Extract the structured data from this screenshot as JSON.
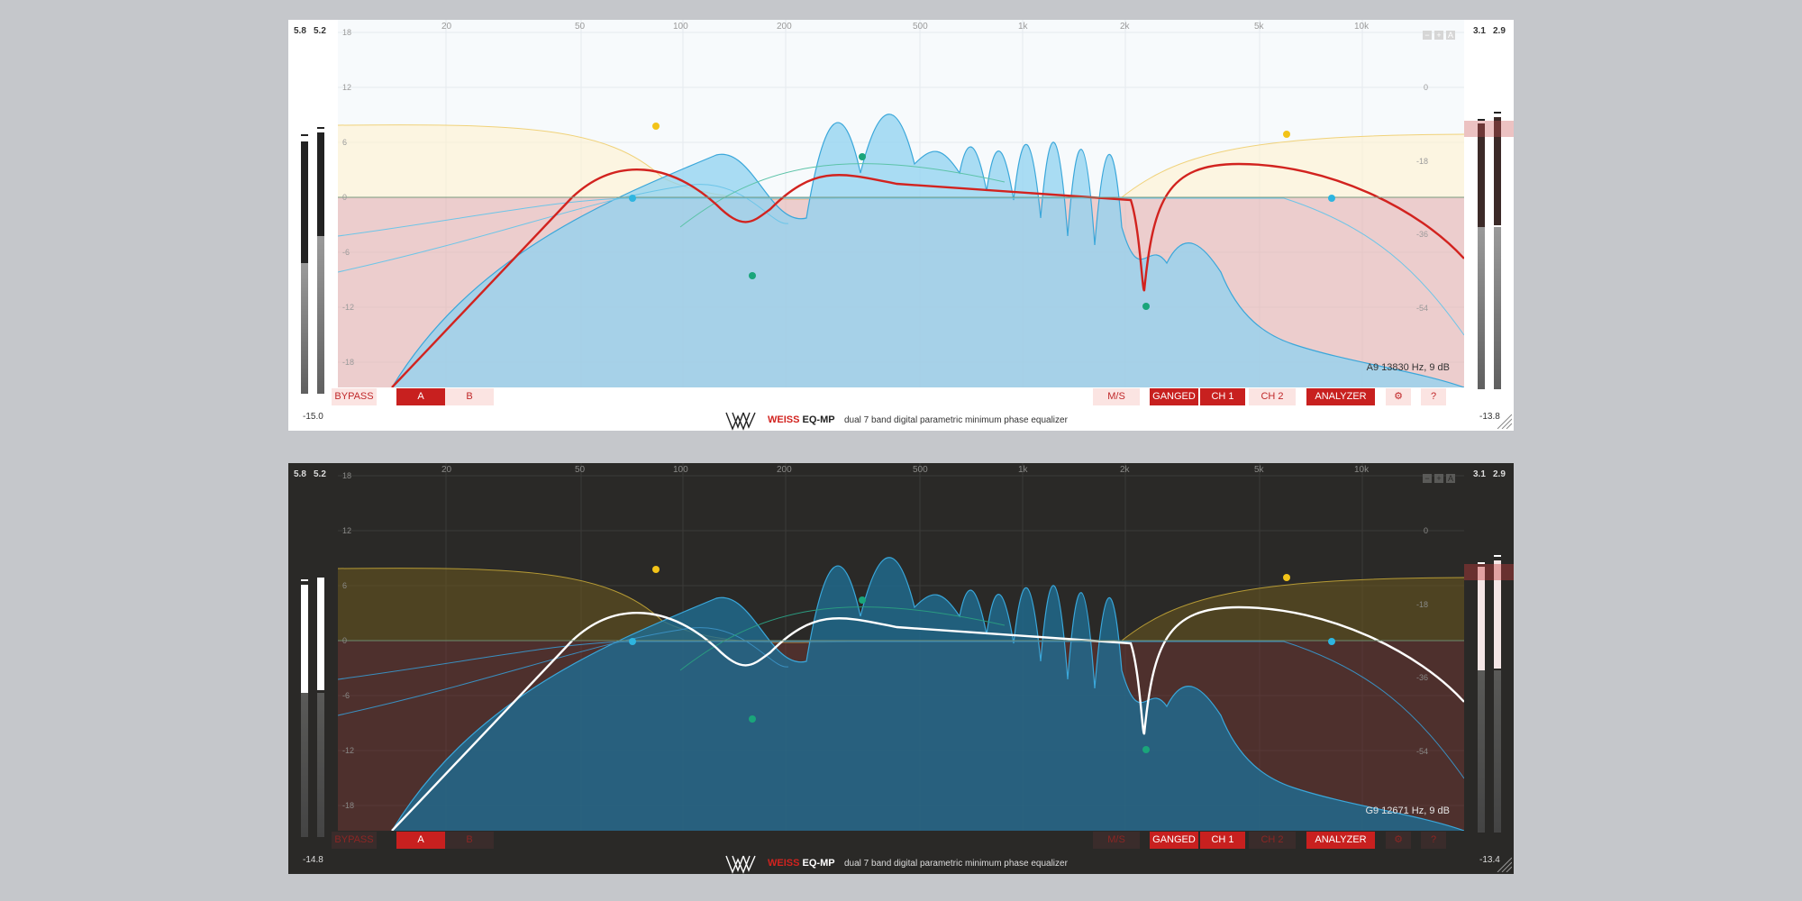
{
  "panels": [
    {
      "theme": "light",
      "meters": {
        "left_peak_1": "5.8",
        "left_peak_2": "5.2",
        "left_bottom": "-15.0",
        "right_peak_1": "3.1",
        "right_peak_2": "2.9",
        "right_bottom": "-13.8"
      },
      "readout": "A9 13830 Hz, 9 dB"
    },
    {
      "theme": "dark",
      "meters": {
        "left_peak_1": "5.8",
        "left_peak_2": "5.2",
        "left_bottom": "-14.8",
        "right_peak_1": "3.1",
        "right_peak_2": "2.9",
        "right_bottom": "-13.4"
      },
      "readout": "G9 12671 Hz, 9 dB"
    }
  ],
  "freq_labels": [
    "20",
    "50",
    "100",
    "200",
    "500",
    "1k",
    "2k",
    "5k",
    "10k"
  ],
  "db_labels": [
    "18",
    "12",
    "6",
    "0",
    "-6",
    "-12",
    "-18"
  ],
  "analyzer_labels": [
    "0",
    "-18",
    "-36",
    "-54"
  ],
  "zoom": {
    "minus": "−",
    "plus": "+",
    "auto": "A"
  },
  "buttons": {
    "bypass": "BYPASS",
    "a": "A",
    "b": "B",
    "ms": "M/S",
    "ganged": "GANGED",
    "ch1": "CH 1",
    "ch2": "CH 2",
    "analyzer": "ANALYZER",
    "settings": "⚙",
    "help": "?"
  },
  "brand": {
    "weiss": "WEISS",
    "product": "EQ-MP",
    "tagline": "dual 7 band digital parametric minimum phase equalizer"
  },
  "colors": {
    "accent_red": "#c8201f",
    "eq_curve_light": "#d2231f",
    "eq_curve_dark": "#ffffff",
    "band_cyan": "#2eb5e0",
    "band_green": "#1aa57a",
    "band_yellow": "#f2c318"
  }
}
